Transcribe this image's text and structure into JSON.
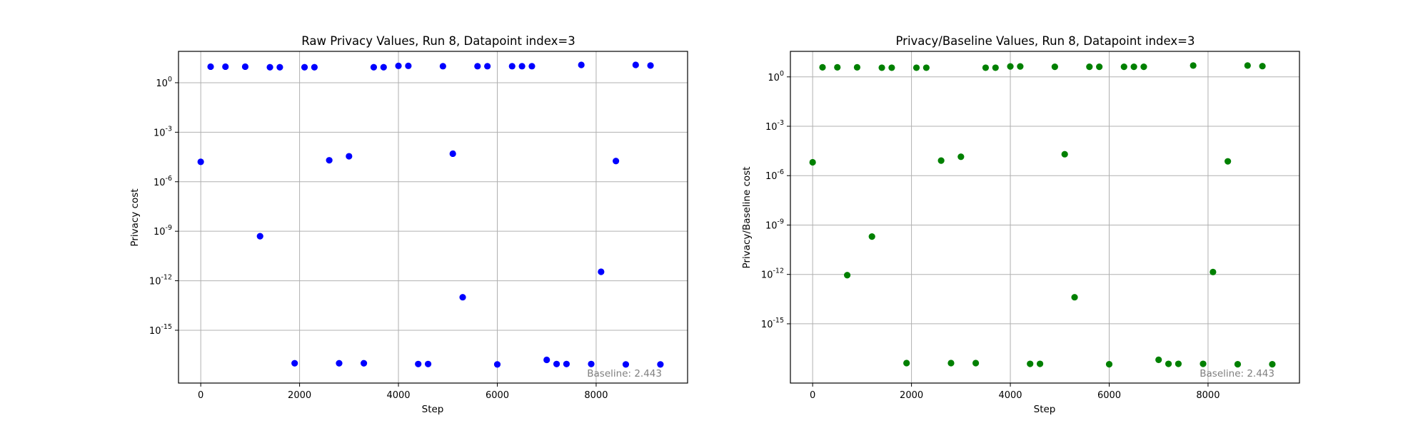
{
  "chart_data": [
    {
      "type": "scatter",
      "title": "Raw Privacy Values, Run 8, Datapoint index=3",
      "xlabel": "Step",
      "ylabel": "Privacy cost",
      "yscale": "log",
      "xlim": [
        -450,
        9850
      ],
      "ylim_exp": [
        -18.2,
        1.9
      ],
      "xticks": [
        0,
        2000,
        4000,
        6000,
        8000
      ],
      "xtick_labels": [
        "0",
        "2000",
        "4000",
        "6000",
        "8000"
      ],
      "yticks_exp": [
        0,
        -3,
        -6,
        -9,
        -12,
        -15
      ],
      "ytick_labels": [
        "10^0",
        "10^-3",
        "10^-6",
        "10^-9",
        "10^-12",
        "10^-15"
      ],
      "grid": true,
      "color": "#0000ff",
      "annotation": "Baseline: 2.443",
      "points": [
        {
          "x": 0,
          "y": 1.6e-05
        },
        {
          "x": 200,
          "y": 9.4
        },
        {
          "x": 500,
          "y": 9.4
        },
        {
          "x": 900,
          "y": 9.4
        },
        {
          "x": 1200,
          "y": 5e-10
        },
        {
          "x": 1400,
          "y": 8.7
        },
        {
          "x": 1600,
          "y": 8.7
        },
        {
          "x": 1900,
          "y": 1e-17
        },
        {
          "x": 2100,
          "y": 8.7
        },
        {
          "x": 2300,
          "y": 8.7
        },
        {
          "x": 2600,
          "y": 2e-05
        },
        {
          "x": 2800,
          "y": 1e-17
        },
        {
          "x": 3000,
          "y": 3.5e-05
        },
        {
          "x": 3300,
          "y": 1e-17
        },
        {
          "x": 3500,
          "y": 8.7
        },
        {
          "x": 3700,
          "y": 8.7
        },
        {
          "x": 4000,
          "y": 10.5
        },
        {
          "x": 4200,
          "y": 10.5
        },
        {
          "x": 4400,
          "y": 9e-18
        },
        {
          "x": 4600,
          "y": 9e-18
        },
        {
          "x": 4900,
          "y": 10.0
        },
        {
          "x": 5100,
          "y": 5e-05
        },
        {
          "x": 5300,
          "y": 1e-13
        },
        {
          "x": 5600,
          "y": 10.0
        },
        {
          "x": 5800,
          "y": 10.0
        },
        {
          "x": 6000,
          "y": 8.5e-18
        },
        {
          "x": 6300,
          "y": 10.0
        },
        {
          "x": 6500,
          "y": 10.0
        },
        {
          "x": 6700,
          "y": 10.0
        },
        {
          "x": 7000,
          "y": 1.6e-17
        },
        {
          "x": 7200,
          "y": 9e-18
        },
        {
          "x": 7400,
          "y": 9e-18
        },
        {
          "x": 7700,
          "y": 12.0
        },
        {
          "x": 7900,
          "y": 9e-18
        },
        {
          "x": 8100,
          "y": 3.5e-12
        },
        {
          "x": 8400,
          "y": 1.8e-05
        },
        {
          "x": 8600,
          "y": 8.5e-18
        },
        {
          "x": 8800,
          "y": 12.0
        },
        {
          "x": 9100,
          "y": 11.0
        },
        {
          "x": 9300,
          "y": 8.5e-18
        }
      ]
    },
    {
      "type": "scatter",
      "title": "Privacy/Baseline Values, Run 8, Datapoint index=3",
      "xlabel": "Step",
      "ylabel": "Privacy/Baseline cost",
      "yscale": "log",
      "xlim": [
        -450,
        9850
      ],
      "ylim_exp": [
        -18.6,
        1.55
      ],
      "xticks": [
        0,
        2000,
        4000,
        6000,
        8000
      ],
      "xtick_labels": [
        "0",
        "2000",
        "4000",
        "6000",
        "8000"
      ],
      "yticks_exp": [
        0,
        -3,
        -6,
        -9,
        -12,
        -15
      ],
      "ytick_labels": [
        "10^0",
        "10^-3",
        "10^-6",
        "10^-9",
        "10^-12",
        "10^-15"
      ],
      "grid": true,
      "color": "#008000",
      "annotation": "Baseline: 2.443",
      "points": [
        {
          "x": 0,
          "y": 6.5e-06
        },
        {
          "x": 200,
          "y": 3.8
        },
        {
          "x": 500,
          "y": 3.8
        },
        {
          "x": 900,
          "y": 3.8
        },
        {
          "x": 1200,
          "y": 2e-10
        },
        {
          "x": 700,
          "y": 9e-13
        },
        {
          "x": 1400,
          "y": 3.6
        },
        {
          "x": 1600,
          "y": 3.6
        },
        {
          "x": 1900,
          "y": 4.1e-18
        },
        {
          "x": 2100,
          "y": 3.6
        },
        {
          "x": 2300,
          "y": 3.6
        },
        {
          "x": 2600,
          "y": 8.2e-06
        },
        {
          "x": 2800,
          "y": 4.1e-18
        },
        {
          "x": 3000,
          "y": 1.4e-05
        },
        {
          "x": 3300,
          "y": 4.1e-18
        },
        {
          "x": 3500,
          "y": 3.6
        },
        {
          "x": 3700,
          "y": 3.6
        },
        {
          "x": 4000,
          "y": 4.3
        },
        {
          "x": 4200,
          "y": 4.3
        },
        {
          "x": 4400,
          "y": 3.7e-18
        },
        {
          "x": 4600,
          "y": 3.7e-18
        },
        {
          "x": 4900,
          "y": 4.1
        },
        {
          "x": 5100,
          "y": 2e-05
        },
        {
          "x": 5300,
          "y": 4.1e-14
        },
        {
          "x": 5600,
          "y": 4.1
        },
        {
          "x": 5800,
          "y": 4.1
        },
        {
          "x": 6000,
          "y": 3.5e-18
        },
        {
          "x": 6300,
          "y": 4.1
        },
        {
          "x": 6500,
          "y": 4.1
        },
        {
          "x": 6700,
          "y": 4.1
        },
        {
          "x": 7000,
          "y": 6.5e-18
        },
        {
          "x": 7200,
          "y": 3.7e-18
        },
        {
          "x": 7400,
          "y": 3.7e-18
        },
        {
          "x": 7700,
          "y": 4.9
        },
        {
          "x": 7900,
          "y": 3.7e-18
        },
        {
          "x": 8100,
          "y": 1.4e-12
        },
        {
          "x": 8400,
          "y": 7.4e-06
        },
        {
          "x": 8600,
          "y": 3.5e-18
        },
        {
          "x": 8800,
          "y": 4.9
        },
        {
          "x": 9100,
          "y": 4.5
        },
        {
          "x": 9300,
          "y": 3.5e-18
        }
      ]
    }
  ]
}
